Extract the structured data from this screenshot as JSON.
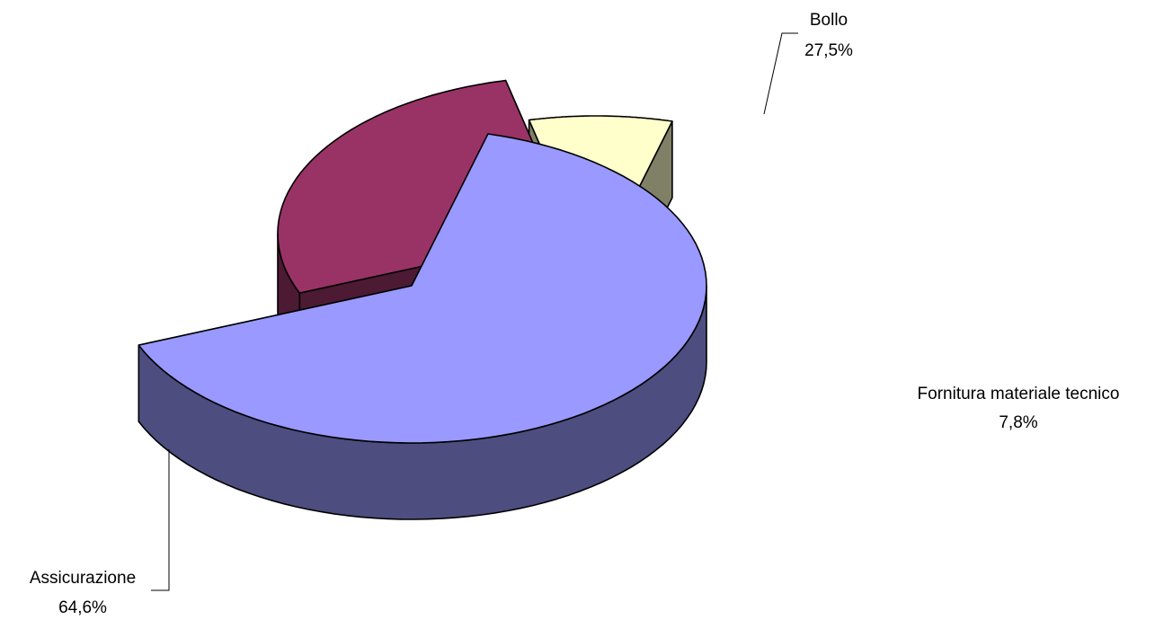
{
  "chart_data": {
    "type": "pie",
    "style": "3d-exploded",
    "legend": "none",
    "slices": [
      {
        "label": "Assicurazione",
        "value": 64.6,
        "value_label": "64,6%",
        "color": "#9999FF",
        "side_color": "#4D4D80"
      },
      {
        "label": "Bollo",
        "value": 27.5,
        "value_label": "27,5%",
        "color": "#993366",
        "side_color": "#4D1A33"
      },
      {
        "label": "Fornitura materiale tecnico",
        "value": 7.8,
        "value_label": "7,8%",
        "color": "#FFFFCC",
        "side_color": "#808066"
      }
    ]
  }
}
